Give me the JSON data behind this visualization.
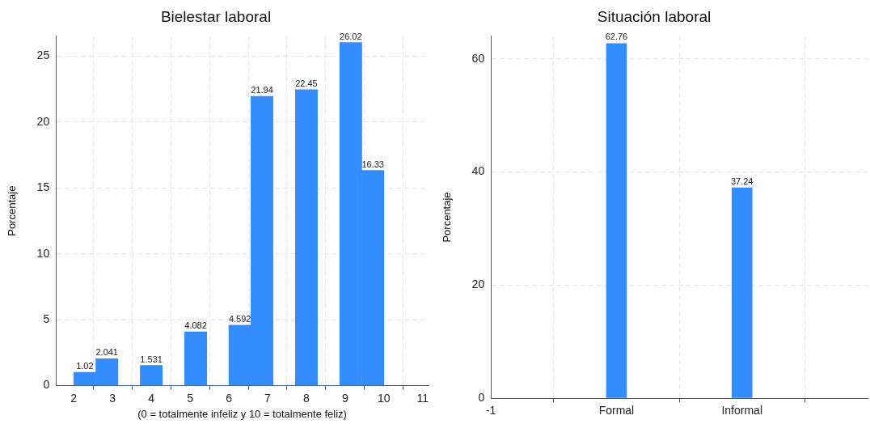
{
  "chart_data": [
    {
      "type": "histogram",
      "title": "Bielestar laboral",
      "xlabel": "(0 = totalmente infeliz y 10 = totalmente feliz)",
      "ylabel": "Porcentaje",
      "bins": [
        2,
        2.57,
        3.14,
        3.71,
        4.29,
        4.86,
        5.43,
        6,
        6.57,
        7.14,
        7.71,
        8.29,
        8.86,
        9.43,
        10
      ],
      "values": [
        1.02,
        2.041,
        0,
        1.531,
        0,
        4.082,
        0,
        4.592,
        21.94,
        0,
        22.45,
        0,
        26.02,
        16.33
      ],
      "value_labels": [
        "1.02",
        "2.041",
        null,
        "1.531",
        null,
        "4.082",
        null,
        "4.592",
        "21.94",
        null,
        "22.45",
        null,
        "26.02",
        "16.33"
      ],
      "color": "#338dff",
      "xlim": [
        1.54,
        11.15
      ],
      "xticks": [
        2,
        3,
        4,
        5,
        6,
        7,
        8,
        9,
        10,
        11
      ],
      "ylim": [
        0,
        26.5
      ],
      "yticks": [
        0,
        5,
        10,
        15,
        20,
        25
      ],
      "grid": true
    },
    {
      "type": "bar",
      "title": "Situación laboral",
      "ylabel": "Porcentaje",
      "categories": [
        "-1",
        "Formal",
        "Informal",
        null
      ],
      "values": [
        null,
        62.76,
        37.24,
        null
      ],
      "color": "#338dff",
      "data_labels": true,
      "ylim": [
        0,
        64
      ],
      "yticks": [
        0,
        20,
        40,
        60
      ],
      "grid": true
    }
  ]
}
